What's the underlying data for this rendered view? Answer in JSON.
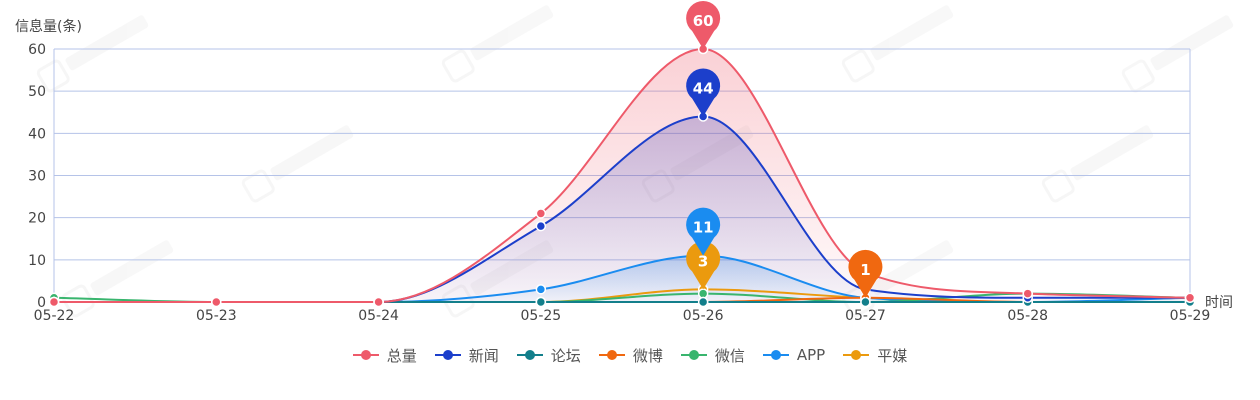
{
  "chart_data": {
    "type": "line",
    "y_axis_title": "信息量(条)",
    "x_axis_title": "时间",
    "categories": [
      "05-22",
      "05-23",
      "05-24",
      "05-25",
      "05-26",
      "05-27",
      "05-28",
      "05-29"
    ],
    "ylim": [
      0,
      60
    ],
    "yticks": [
      0,
      10,
      20,
      30,
      40,
      50,
      60
    ],
    "grid": true,
    "legend_position": "bottom",
    "series": [
      {
        "name": "总量",
        "color": "#ee5a6a",
        "values": [
          0,
          0,
          0,
          21,
          60,
          7,
          2,
          1
        ],
        "area": true,
        "marker": {
          "value": 60,
          "label": "60"
        }
      },
      {
        "name": "新闻",
        "color": "#1c3fcb",
        "values": [
          0,
          0,
          0,
          18,
          44,
          3,
          1,
          1
        ],
        "area": true,
        "marker": {
          "value": 44,
          "label": "44"
        }
      },
      {
        "name": "论坛",
        "color": "#137f8b",
        "values": [
          0,
          0,
          0,
          0,
          0,
          0,
          0,
          0
        ]
      },
      {
        "name": "微博",
        "color": "#f06810",
        "values": [
          0,
          0,
          0,
          0,
          0,
          1,
          0,
          0
        ],
        "marker": {
          "value": 1,
          "label": "1"
        }
      },
      {
        "name": "微信",
        "color": "#39b56e",
        "values": [
          1,
          0,
          0,
          0,
          2,
          0,
          2,
          1
        ]
      },
      {
        "name": "APP",
        "color": "#1a8cf0",
        "values": [
          0,
          0,
          0,
          3,
          11,
          1,
          0,
          1
        ],
        "area": true,
        "marker": {
          "value": 11,
          "label": "11"
        }
      },
      {
        "name": "平媒",
        "color": "#eb9a0e",
        "values": [
          0,
          0,
          0,
          0,
          3,
          1,
          0,
          0
        ],
        "marker": {
          "value": 3,
          "label": "3"
        }
      }
    ]
  }
}
